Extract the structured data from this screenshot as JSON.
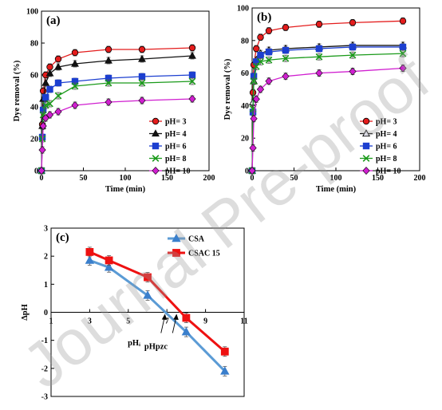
{
  "watermark": "Journal Pre-proof",
  "colors": {
    "red": "#e41c1c",
    "black": "#111111",
    "blue": "#1c3fd0",
    "green": "#1a9a1a",
    "magenta": "#d01fd0",
    "csa": "#5b9bd5",
    "csac": "#ee1111"
  },
  "chart_data": [
    {
      "panel": "(a)",
      "type": "line",
      "xlabel": "Time (min)",
      "ylabel": "Dye removal (%)",
      "xlim": [
        0,
        200
      ],
      "ylim": [
        0,
        100
      ],
      "xticks": [
        0,
        50,
        100,
        150,
        200
      ],
      "yticks": [
        0,
        20,
        40,
        60,
        80,
        100
      ],
      "legend_position": "lower-right",
      "series": [
        {
          "name": "pH= 3",
          "marker": "circle",
          "color": "#e41c1c",
          "x": [
            0,
            1,
            2,
            5,
            10,
            20,
            40,
            80,
            120,
            180
          ],
          "y": [
            0,
            29,
            50,
            60,
            65,
            70,
            74,
            76,
            76,
            77
          ]
        },
        {
          "name": "pH= 4",
          "marker": "triangle",
          "color": "#111111",
          "x": [
            0,
            1,
            2,
            5,
            10,
            20,
            40,
            80,
            120,
            180
          ],
          "y": [
            0,
            28,
            45,
            55,
            61,
            65,
            67,
            69,
            70,
            72
          ]
        },
        {
          "name": "pH= 6",
          "marker": "square",
          "color": "#1c3fd0",
          "x": [
            0,
            1,
            2,
            5,
            10,
            20,
            40,
            80,
            120,
            180
          ],
          "y": [
            0,
            21,
            38,
            46,
            51,
            55,
            56,
            58,
            59,
            60
          ]
        },
        {
          "name": "pH= 8",
          "marker": "x",
          "color": "#1a9a1a",
          "x": [
            0,
            1,
            2,
            5,
            10,
            20,
            40,
            80,
            120,
            180
          ],
          "y": [
            0,
            20,
            35,
            41,
            42,
            47,
            53,
            55,
            55,
            56
          ]
        },
        {
          "name": "pH= 10",
          "marker": "diamond",
          "color": "#d01fd0",
          "x": [
            0,
            1,
            2,
            5,
            10,
            20,
            40,
            80,
            120,
            180
          ],
          "y": [
            0,
            13,
            28,
            33,
            35,
            37,
            41,
            43,
            44,
            45
          ]
        }
      ]
    },
    {
      "panel": "(b)",
      "type": "line",
      "xlabel": "Time (min)",
      "ylabel": "Dye removal (%)",
      "xlim": [
        0,
        200
      ],
      "ylim": [
        0,
        100
      ],
      "xticks": [
        0,
        50,
        100,
        150,
        200
      ],
      "yticks": [
        0,
        20,
        40,
        60,
        80,
        100
      ],
      "legend_position": "lower-right",
      "series": [
        {
          "name": "pH= 3",
          "marker": "circle",
          "color": "#e41c1c",
          "x": [
            0,
            1,
            2,
            5,
            10,
            20,
            40,
            80,
            120,
            180
          ],
          "y": [
            0,
            48,
            65,
            75,
            82,
            86,
            88,
            90,
            91,
            92
          ]
        },
        {
          "name": "pH= 4",
          "marker": "triangle-open",
          "color": "#111111",
          "x": [
            0,
            1,
            2,
            5,
            10,
            20,
            40,
            80,
            120,
            180
          ],
          "y": [
            0,
            42,
            55,
            68,
            72,
            74,
            75,
            76,
            77,
            77
          ]
        },
        {
          "name": "pH= 6",
          "marker": "square",
          "color": "#1c3fd0",
          "x": [
            0,
            1,
            2,
            5,
            10,
            20,
            40,
            80,
            120,
            180
          ],
          "y": [
            0,
            36,
            58,
            67,
            71,
            73,
            74,
            75,
            76,
            76
          ]
        },
        {
          "name": "pH= 8",
          "marker": "x",
          "color": "#1a9a1a",
          "x": [
            0,
            1,
            2,
            5,
            10,
            20,
            40,
            80,
            120,
            180
          ],
          "y": [
            0,
            38,
            55,
            64,
            67,
            68,
            69,
            70,
            71,
            72
          ]
        },
        {
          "name": "pH= 10",
          "marker": "diamond",
          "color": "#d01fd0",
          "x": [
            0,
            1,
            2,
            5,
            10,
            20,
            40,
            80,
            120,
            180
          ],
          "y": [
            0,
            14,
            32,
            44,
            50,
            55,
            58,
            60,
            61,
            63
          ]
        }
      ]
    },
    {
      "panel": "(c)",
      "type": "line",
      "xlabel": "pHᵢ",
      "ylabel": "ΔpH",
      "xlim": [
        1,
        11
      ],
      "ylim": [
        -3,
        3
      ],
      "xticks": [
        1,
        3,
        5,
        7,
        9,
        11
      ],
      "yticks": [
        -3,
        -2,
        -1,
        0,
        1,
        2,
        3
      ],
      "legend_position": "top-right",
      "annotation": "pHpzc",
      "series": [
        {
          "name": "CSA",
          "marker": "triangle",
          "color": "#5b9bd5",
          "marker_color": "#3a7fcc",
          "x": [
            3,
            4,
            6,
            8,
            10
          ],
          "y": [
            1.85,
            1.6,
            0.6,
            -0.7,
            -2.1
          ]
        },
        {
          "name": "CSAC 15",
          "marker": "square",
          "color": "#ee1111",
          "marker_color": "#ee1111",
          "x": [
            3,
            4,
            6,
            8,
            10
          ],
          "y": [
            2.15,
            1.85,
            1.25,
            -0.2,
            -1.4
          ]
        }
      ]
    }
  ]
}
